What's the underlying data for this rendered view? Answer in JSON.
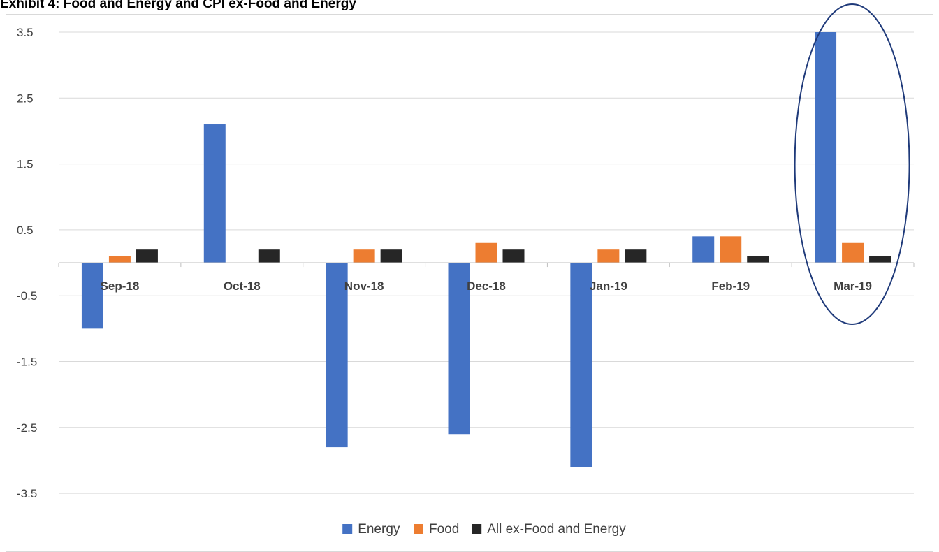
{
  "chart_data": {
    "type": "bar",
    "title": "Exhibit 4: Food and Energy and CPI ex-Food and Energy",
    "xlabel": "",
    "ylabel": "",
    "categories": [
      "Sep-18",
      "Oct-18",
      "Nov-18",
      "Dec-18",
      "Jan-19",
      "Feb-19",
      "Mar-19"
    ],
    "series": [
      {
        "name": "Energy",
        "color": "#4472C4",
        "values": [
          -1.0,
          2.1,
          -2.8,
          -2.6,
          -3.1,
          0.4,
          3.5
        ]
      },
      {
        "name": "Food",
        "color": "#ED7D31",
        "values": [
          0.1,
          0.0,
          0.2,
          0.3,
          0.2,
          0.4,
          0.3
        ]
      },
      {
        "name": "All ex-Food and Energy",
        "color": "#262626",
        "values": [
          0.2,
          0.2,
          0.2,
          0.2,
          0.2,
          0.1,
          0.1
        ]
      }
    ],
    "yticks": [
      "3.5",
      "2.5",
      "1.5",
      "0.5",
      "-0.5",
      "-1.5",
      "-2.5",
      "-3.5"
    ],
    "ylim": [
      -4.0,
      3.5
    ],
    "grid": true,
    "legend": "bottom",
    "annotations": [
      {
        "type": "ellipse",
        "target_category": "Mar-19",
        "color": "#1F3A7A"
      }
    ]
  }
}
